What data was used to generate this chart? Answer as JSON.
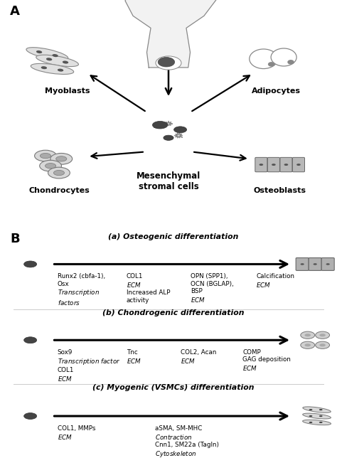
{
  "panel_A_label": "A",
  "panel_B_label": "B",
  "center_cell_label": "Mesenchymal\nstromal cells",
  "section_a_title": "(a) Osteogenic differentiation",
  "section_b_title": "(b) Chondrogenic differentiation",
  "section_c_title": "(c) Myogenic (VSMCs) differentiation",
  "osteogenic_col1": "Runx2 (cbfa-1),\nOsx",
  "osteogenic_col1_italic": "Transcription\nfactors",
  "osteogenic_col2": "COL1",
  "osteogenic_col2_italic": "ECM",
  "osteogenic_col2b": "Increased ALP\nactivity",
  "osteogenic_col3": "OPN (SPP1),\nOCN (BGLAP),\nBSP",
  "osteogenic_col3_italic": "ECM",
  "osteogenic_col4": "Calcification",
  "osteogenic_col4_italic": "ECM",
  "chondrogenic_col1": "Sox9",
  "chondrogenic_col1_italic": "Transcription factor",
  "chondrogenic_col1b": "COL1",
  "chondrogenic_col1_italic2": "ECM",
  "chondrogenic_col2": "Tnc",
  "chondrogenic_col2_italic": "ECM",
  "chondrogenic_col3": "COL2, Acan",
  "chondrogenic_col3_italic": "ECM",
  "chondrogenic_col4": "COMP\nGAG deposition",
  "chondrogenic_col4_italic": "ECM",
  "myogenic_col1": "COL1, MMPs",
  "myogenic_col1_italic": "ECM",
  "myogenic_col2": "aSMA, SM-MHC",
  "myogenic_col2_italic": "Contraction",
  "myogenic_col2b": "Cnn1, SM22a (TagIn)",
  "myogenic_col2_italic2": "Cytoskeleton",
  "bg_color": "#ffffff",
  "text_color": "#000000",
  "cell_fill": "#d2d2d2",
  "cell_edge": "#888888",
  "nucleus_fill": "#555555",
  "osteoblast_fill": "#b0b0b0",
  "bone_fill": "#f2f2f2"
}
